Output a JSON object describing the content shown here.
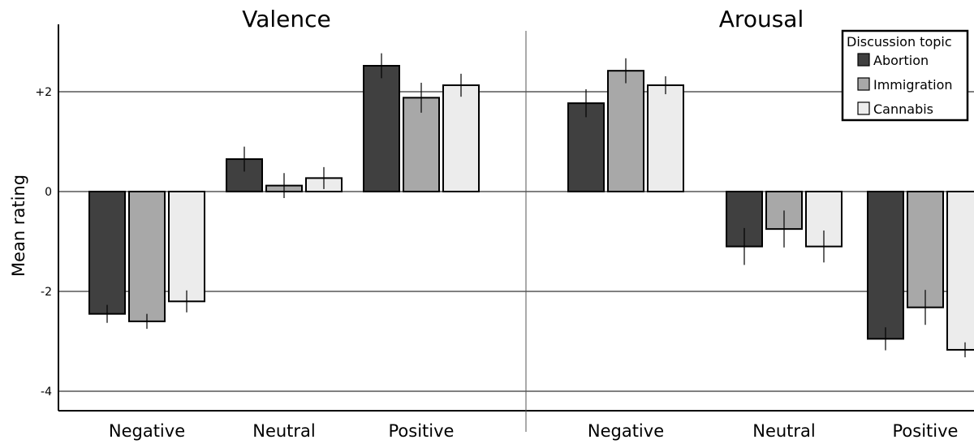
{
  "chart_data": {
    "type": "bar",
    "ylabel": "Mean rating",
    "ylim": [
      -4.4,
      3.4
    ],
    "y_ticks": [
      {
        "value": 2,
        "label": "+2"
      },
      {
        "value": 0,
        "label": "0"
      },
      {
        "value": -2,
        "label": "-2"
      },
      {
        "value": -4,
        "label": "-4"
      }
    ],
    "grid": "horizontal",
    "legend_title": "Discussion topic",
    "legend_position": "top-right",
    "series": [
      {
        "name": "Abortion",
        "color": "#404040"
      },
      {
        "name": "Immigration",
        "color": "#a8a8a8"
      },
      {
        "name": "Cannabis",
        "color": "#ececec"
      }
    ],
    "panels": [
      {
        "title": "Valence",
        "categories": [
          "Negative",
          "Neutral",
          "Positive"
        ],
        "values": [
          [
            -2.45,
            -2.6,
            -2.2
          ],
          [
            0.65,
            0.12,
            0.27
          ],
          [
            2.52,
            1.88,
            2.13
          ]
        ],
        "errors": [
          [
            0.18,
            0.15,
            0.22
          ],
          [
            0.25,
            0.25,
            0.22
          ],
          [
            0.25,
            0.3,
            0.23
          ]
        ]
      },
      {
        "title": "Arousal",
        "categories": [
          "Negative",
          "Neutral",
          "Positive"
        ],
        "values": [
          [
            1.77,
            2.42,
            2.13
          ],
          [
            -1.1,
            -0.75,
            -1.1
          ],
          [
            -2.95,
            -2.32,
            -3.17
          ]
        ],
        "errors": [
          [
            0.28,
            0.25,
            0.18
          ],
          [
            0.37,
            0.37,
            0.32
          ],
          [
            0.23,
            0.35,
            0.15
          ]
        ]
      }
    ]
  }
}
